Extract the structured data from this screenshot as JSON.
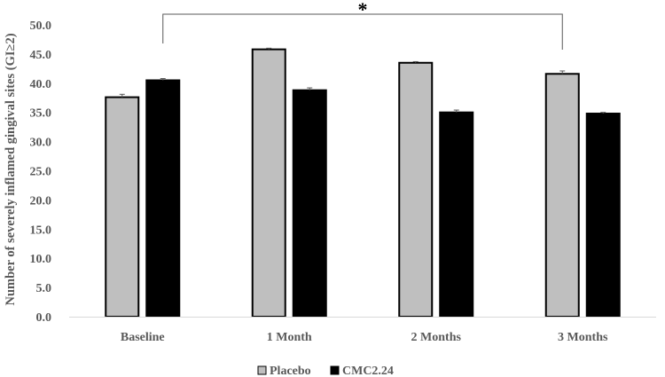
{
  "chart_data": {
    "type": "bar",
    "categories": [
      "Baseline",
      "1 Month",
      "2 Months",
      "3 Months"
    ],
    "series": [
      {
        "name": "Placebo",
        "values": [
          37.6,
          45.8,
          43.5,
          41.6
        ],
        "errors": [
          0.5,
          0.2,
          0.2,
          0.5
        ],
        "color": "#bfbfbf"
      },
      {
        "name": "CMC2.24",
        "values": [
          40.5,
          38.8,
          35.0,
          34.8
        ],
        "errors": [
          0.3,
          0.4,
          0.4,
          0.2
        ],
        "color": "#000000"
      }
    ],
    "title": "",
    "xlabel": "",
    "ylabel": "Number of severely inflamed gingival sites (GI≥2)",
    "ylim": [
      0,
      50
    ],
    "yticks": [
      "0.0",
      "5.0",
      "10.0",
      "15.0",
      "20.0",
      "25.0",
      "30.0",
      "35.0",
      "40.0",
      "45.0",
      "50.0"
    ],
    "significance": {
      "label": "*",
      "from_category": "Baseline",
      "to_category": "3 Months"
    },
    "grid": false,
    "legend_position": "bottom"
  }
}
